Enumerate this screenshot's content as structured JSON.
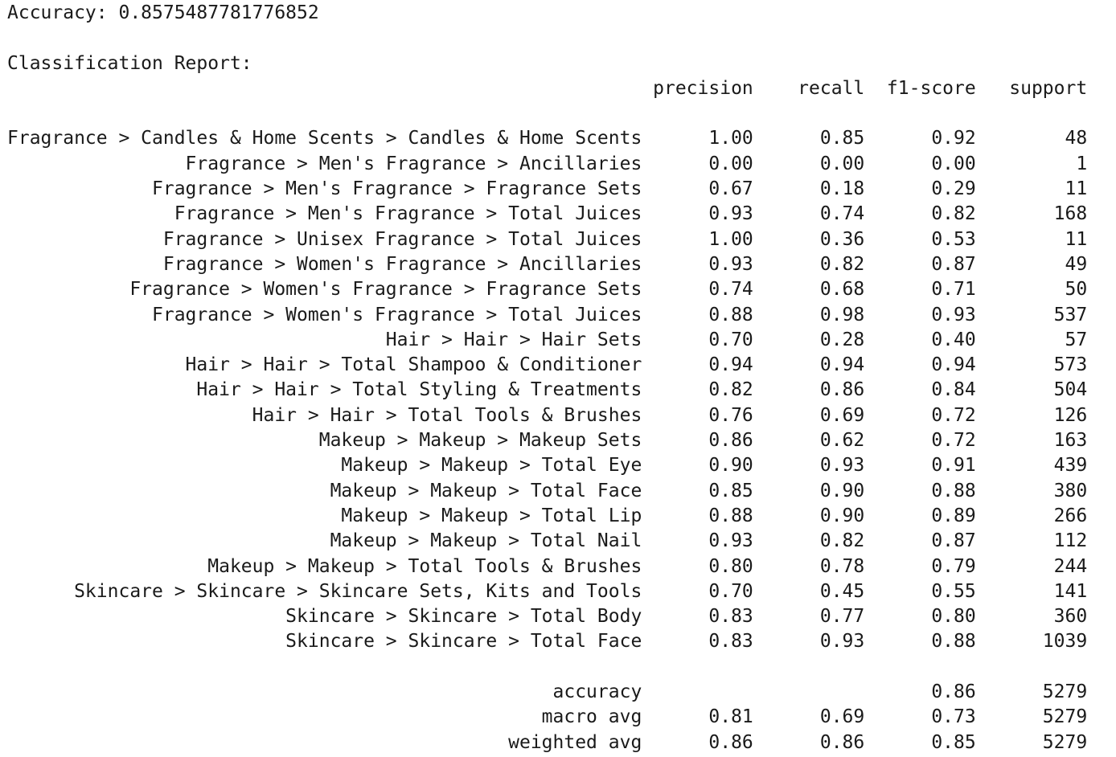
{
  "accuracy_line": "Accuracy: 0.8575487781776852",
  "report_title": "Classification Report:",
  "report": {
    "columns": [
      "precision",
      "recall",
      "f1-score",
      "support"
    ],
    "rows": [
      {
        "label": "Fragrance > Candles & Home Scents > Candles & Home Scents",
        "precision": "1.00",
        "recall": "0.85",
        "f1": "0.92",
        "support": "48"
      },
      {
        "label": "Fragrance > Men's Fragrance > Ancillaries",
        "precision": "0.00",
        "recall": "0.00",
        "f1": "0.00",
        "support": "1"
      },
      {
        "label": "Fragrance > Men's Fragrance > Fragrance Sets",
        "precision": "0.67",
        "recall": "0.18",
        "f1": "0.29",
        "support": "11"
      },
      {
        "label": "Fragrance > Men's Fragrance > Total Juices",
        "precision": "0.93",
        "recall": "0.74",
        "f1": "0.82",
        "support": "168"
      },
      {
        "label": "Fragrance > Unisex Fragrance > Total Juices",
        "precision": "1.00",
        "recall": "0.36",
        "f1": "0.53",
        "support": "11"
      },
      {
        "label": "Fragrance > Women's Fragrance > Ancillaries",
        "precision": "0.93",
        "recall": "0.82",
        "f1": "0.87",
        "support": "49"
      },
      {
        "label": "Fragrance > Women's Fragrance > Fragrance Sets",
        "precision": "0.74",
        "recall": "0.68",
        "f1": "0.71",
        "support": "50"
      },
      {
        "label": "Fragrance > Women's Fragrance > Total Juices",
        "precision": "0.88",
        "recall": "0.98",
        "f1": "0.93",
        "support": "537"
      },
      {
        "label": "Hair > Hair > Hair Sets",
        "precision": "0.70",
        "recall": "0.28",
        "f1": "0.40",
        "support": "57"
      },
      {
        "label": "Hair > Hair > Total Shampoo & Conditioner",
        "precision": "0.94",
        "recall": "0.94",
        "f1": "0.94",
        "support": "573"
      },
      {
        "label": "Hair > Hair > Total Styling & Treatments",
        "precision": "0.82",
        "recall": "0.86",
        "f1": "0.84",
        "support": "504"
      },
      {
        "label": "Hair > Hair > Total Tools & Brushes",
        "precision": "0.76",
        "recall": "0.69",
        "f1": "0.72",
        "support": "126"
      },
      {
        "label": "Makeup > Makeup > Makeup Sets",
        "precision": "0.86",
        "recall": "0.62",
        "f1": "0.72",
        "support": "163"
      },
      {
        "label": "Makeup > Makeup > Total Eye",
        "precision": "0.90",
        "recall": "0.93",
        "f1": "0.91",
        "support": "439"
      },
      {
        "label": "Makeup > Makeup > Total Face",
        "precision": "0.85",
        "recall": "0.90",
        "f1": "0.88",
        "support": "380"
      },
      {
        "label": "Makeup > Makeup > Total Lip",
        "precision": "0.88",
        "recall": "0.90",
        "f1": "0.89",
        "support": "266"
      },
      {
        "label": "Makeup > Makeup > Total Nail",
        "precision": "0.93",
        "recall": "0.82",
        "f1": "0.87",
        "support": "112"
      },
      {
        "label": "Makeup > Makeup > Total Tools & Brushes",
        "precision": "0.80",
        "recall": "0.78",
        "f1": "0.79",
        "support": "244"
      },
      {
        "label": "Skincare > Skincare > Skincare Sets, Kits and Tools",
        "precision": "0.70",
        "recall": "0.45",
        "f1": "0.55",
        "support": "141"
      },
      {
        "label": "Skincare > Skincare > Total Body",
        "precision": "0.83",
        "recall": "0.77",
        "f1": "0.80",
        "support": "360"
      },
      {
        "label": "Skincare > Skincare > Total Face",
        "precision": "0.83",
        "recall": "0.93",
        "f1": "0.88",
        "support": "1039"
      }
    ],
    "summary": [
      {
        "label": "accuracy",
        "precision": "",
        "recall": "",
        "f1": "0.86",
        "support": "5279"
      },
      {
        "label": "macro avg",
        "precision": "0.81",
        "recall": "0.69",
        "f1": "0.73",
        "support": "5279"
      },
      {
        "label": "weighted avg",
        "precision": "0.86",
        "recall": "0.86",
        "f1": "0.85",
        "support": "5279"
      }
    ]
  }
}
